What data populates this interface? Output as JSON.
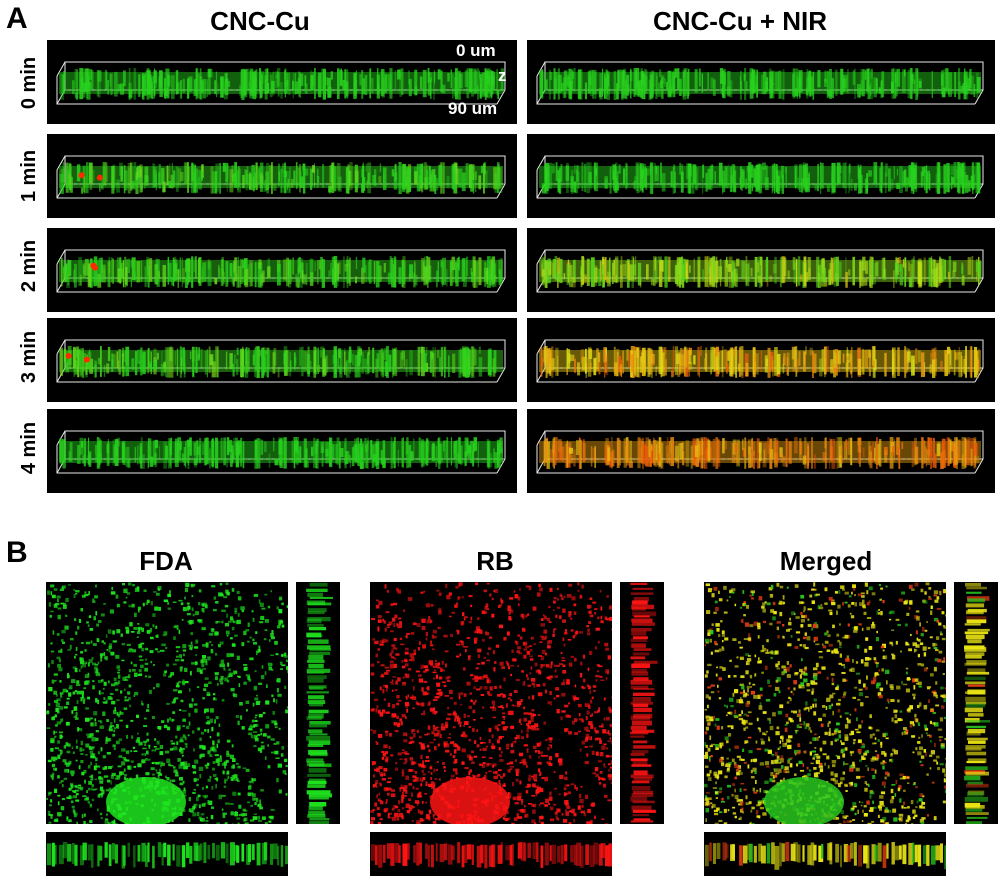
{
  "panel_a": {
    "letter": "A",
    "columns": [
      "CNC-Cu",
      "CNC-Cu + NIR"
    ],
    "rows": [
      "0 min",
      "1 min",
      "2 min",
      "3 min",
      "4 min"
    ],
    "annotations": {
      "top": "0 um",
      "axis": "z",
      "bottom": "90 um"
    },
    "dead_fraction": [
      [
        0.0,
        0.0
      ],
      [
        0.02,
        0.0
      ],
      [
        0.03,
        0.25
      ],
      [
        0.04,
        0.6
      ],
      [
        0.0,
        0.75
      ]
    ]
  },
  "panel_b": {
    "letter": "B",
    "channels": [
      {
        "title": "FDA",
        "color": "#22dd22"
      },
      {
        "title": "RB",
        "color": "#ff1a1a"
      },
      {
        "title": "Merged",
        "color": "#e8e800"
      }
    ]
  },
  "colors": {
    "live": "#22cc22",
    "dead": "#ff2200",
    "background": "#000000"
  }
}
